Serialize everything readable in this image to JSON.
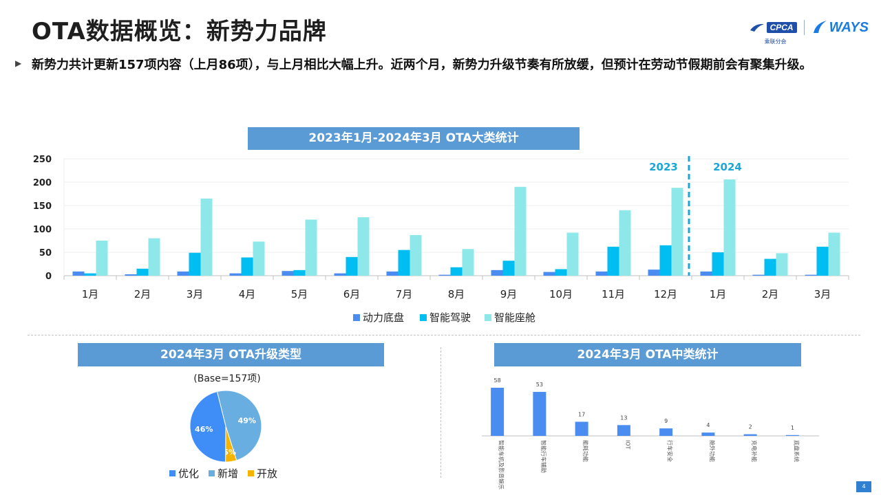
{
  "title": "OTA数据概览：新势力品牌",
  "logos": {
    "cpca": "CPCA",
    "cpca_sub": "乘联分会",
    "ways": "WAYS"
  },
  "bullet": "新势力共计更新157项内容（上月86项），与上月相比大幅上升。近两个月，新势力升级节奏有所放缓，但预计在劳动节假期前会有聚集升级。",
  "page_number": "4",
  "colors": {
    "power": "#4a8cf0",
    "drive": "#00bdf2",
    "cabin": "#8ee8ea",
    "banner": "#5b9bd5",
    "optimize": "#3f8ef7",
    "new": "#69aee0",
    "open": "#f5b400"
  },
  "chart_data": [
    {
      "type": "bar",
      "title": "2023年1月-2024年3月 OTA大类统计",
      "categories": [
        "1月",
        "2月",
        "3月",
        "4月",
        "5月",
        "6月",
        "7月",
        "8月",
        "9月",
        "10月",
        "11月",
        "12月",
        "1月",
        "2月",
        "3月"
      ],
      "series": [
        {
          "name": "动力底盘",
          "values": [
            9,
            3,
            9,
            5,
            10,
            5,
            9,
            2,
            12,
            8,
            9,
            13,
            9,
            2,
            2
          ]
        },
        {
          "name": "智能驾驶",
          "values": [
            5,
            15,
            49,
            39,
            12,
            40,
            55,
            18,
            32,
            14,
            62,
            65,
            50,
            36,
            62
          ]
        },
        {
          "name": "智能座舱",
          "values": [
            75,
            80,
            165,
            73,
            120,
            125,
            87,
            57,
            190,
            92,
            140,
            188,
            206,
            48,
            92
          ]
        }
      ],
      "year_labels": [
        "2023",
        "2024"
      ],
      "yticks": [
        "0",
        "50",
        "100",
        "150",
        "200",
        "250"
      ],
      "ylim": [
        0,
        250
      ],
      "legend": "bottom",
      "grid": true
    },
    {
      "type": "pie",
      "title": "2024年3月 OTA升级类型",
      "subtitle": "(Base=157项)",
      "labels": [
        "优化",
        "新增",
        "开放"
      ],
      "values": [
        46,
        49,
        5
      ],
      "value_labels": [
        "46%",
        "49%",
        "5%"
      ],
      "legend": "bottom"
    },
    {
      "type": "bar",
      "title": "2024年3月 OTA中类统计",
      "categories": [
        "智能车机及影音娱乐",
        "智能行车辅助",
        "能耗功能",
        "IOT",
        "行车安全",
        "舱外功能",
        "充电补能",
        "底盘系统"
      ],
      "values": [
        58,
        53,
        17,
        13,
        9,
        4,
        2,
        1
      ],
      "value_labels": [
        "58",
        "53",
        "17",
        "13",
        "9",
        "4",
        "2",
        "1"
      ]
    }
  ]
}
